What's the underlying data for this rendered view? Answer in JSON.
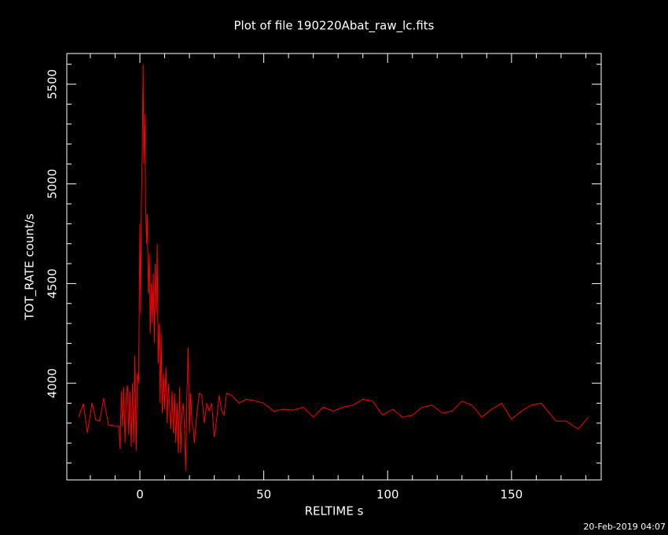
{
  "chart_data": {
    "type": "line",
    "title": "Plot of file 190220Abat_raw_lc.fits",
    "x_label": "RELTIME  s",
    "y_label": "TOT_RATE  count/s",
    "timestamp": "20-Feb-2019 04:07",
    "xlim": [
      -29.5,
      186.2
    ],
    "ylim": [
      3515,
      5654
    ],
    "xticks": [
      0,
      50,
      100,
      150
    ],
    "yticks": [
      4000,
      4500,
      5000,
      5500
    ],
    "xminor_ticks": [
      -20,
      -10,
      10,
      20,
      30,
      40,
      60,
      70,
      80,
      90,
      110,
      120,
      130,
      140,
      160,
      170,
      180
    ],
    "yminor_ticks": [
      3600,
      3700,
      3800,
      3900,
      4100,
      4200,
      4300,
      4400,
      4600,
      4700,
      4800,
      4900,
      5100,
      5200,
      5300,
      5400,
      5600
    ],
    "series": [
      {
        "name": "TOT_RATE",
        "color": "#ff0000",
        "x": [
          -24.7,
          -22.8,
          -21.2,
          -19.3,
          -17.8,
          -16.2,
          -14.6,
          -12.7,
          -11.1,
          -9.5,
          -8.5,
          -8,
          -7.5,
          -7,
          -6.5,
          -6,
          -5.5,
          -5,
          -4.5,
          -4,
          -3.5,
          -3,
          -2.5,
          -2,
          -1.5,
          -1,
          -0.5,
          0,
          0.3,
          0.6,
          1.0,
          1.3,
          1.6,
          2.0,
          2.3,
          2.7,
          3,
          3.4,
          3.8,
          4.2,
          4.6,
          5,
          5.4,
          5.8,
          6.2,
          6.6,
          7,
          7.4,
          7.8,
          8.2,
          8.6,
          9,
          9.5,
          10,
          10.5,
          11,
          11.5,
          12,
          12.5,
          13,
          13.5,
          14,
          14.5,
          15,
          15.5,
          16,
          16.5,
          17,
          17.5,
          18,
          18.5,
          19,
          19.5,
          20,
          20.5,
          21,
          21.5,
          22,
          23,
          24,
          25,
          26,
          27,
          28,
          29,
          30,
          31,
          32,
          33,
          34,
          35,
          37,
          40,
          43,
          47,
          50,
          54,
          58,
          62,
          66,
          70,
          74,
          78,
          82,
          86,
          90,
          94,
          98,
          102,
          106,
          110,
          114,
          118,
          122,
          126,
          130,
          134,
          138,
          142,
          146,
          150,
          154,
          158,
          162,
          168,
          172,
          177,
          181
        ],
        "values": [
          3830,
          3897,
          3751,
          3901,
          3818,
          3810,
          3925,
          3791,
          3790,
          3783,
          3785,
          3670,
          3960,
          3780,
          3980,
          3700,
          3950,
          3990,
          3740,
          3960,
          3680,
          4000,
          3700,
          4140,
          3660,
          4050,
          4000,
          4800,
          4350,
          4900,
          5200,
          5600,
          5100,
          5350,
          4900,
          4700,
          4850,
          4450,
          4650,
          4250,
          4500,
          4300,
          4550,
          4200,
          4600,
          4350,
          4700,
          4100,
          4300,
          3900,
          4250,
          3850,
          4050,
          3870,
          4080,
          3800,
          4000,
          3880,
          3770,
          3960,
          3750,
          3950,
          3700,
          3900,
          3650,
          3980,
          3650,
          3850,
          3900,
          3780,
          3560,
          3950,
          4180,
          3750,
          3950,
          3800,
          3780,
          3700,
          3850,
          3950,
          3940,
          3800,
          3900,
          3860,
          3900,
          3730,
          3820,
          3940,
          3860,
          3840,
          3950,
          3940,
          3900,
          3920,
          3910,
          3900,
          3860,
          3870,
          3865,
          3880,
          3830,
          3880,
          3860,
          3880,
          3890,
          3920,
          3910,
          3840,
          3870,
          3830,
          3840,
          3880,
          3890,
          3850,
          3860,
          3910,
          3890,
          3830,
          3870,
          3900,
          3820,
          3860,
          3890,
          3900,
          3810,
          3810,
          3770,
          3830
        ]
      }
    ]
  }
}
